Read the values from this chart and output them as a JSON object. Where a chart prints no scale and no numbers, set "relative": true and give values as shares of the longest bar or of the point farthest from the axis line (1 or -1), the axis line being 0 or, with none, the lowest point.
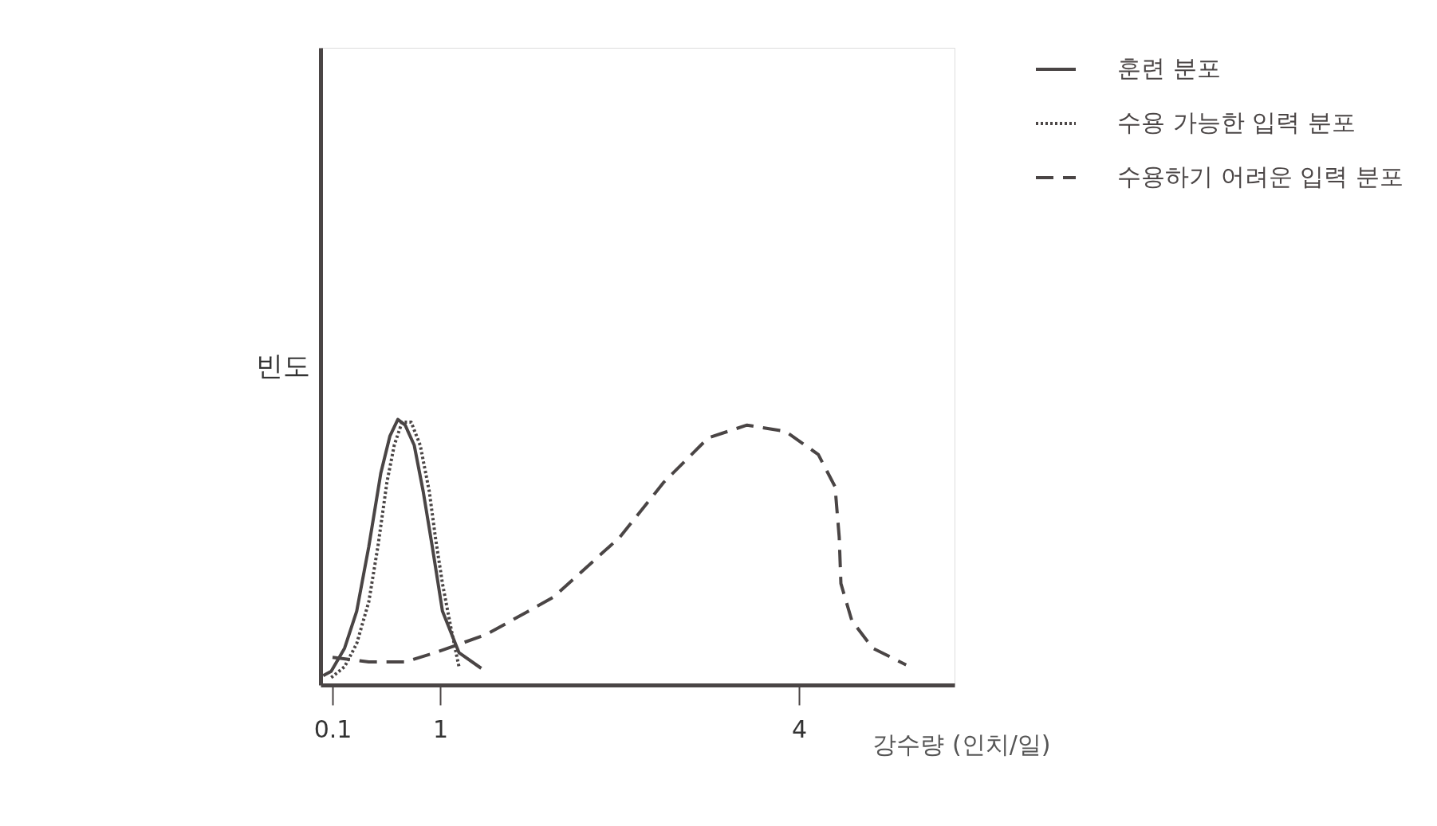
{
  "chart_data": {
    "type": "line",
    "relative": true,
    "xlabel": "강수량 (인치/일)",
    "ylabel": "빈도",
    "xlim": [
      0,
      5.3
    ],
    "xticks": [
      0.1,
      1,
      4
    ],
    "grid": false,
    "legend": "top right",
    "tick_labels": "x",
    "marker": "none",
    "series": [
      {
        "name": "훈련 분포",
        "color": "#4a4545",
        "line_style": "solid",
        "x": [
          0.022,
          0.089,
          0.201,
          0.302,
          0.403,
          0.504,
          0.58,
          0.646,
          0.707,
          0.783,
          0.858,
          0.934,
          1.019,
          1.157,
          1.343
        ],
        "values": [
          0.035,
          0.052,
          0.139,
          0.278,
          0.521,
          0.799,
          0.938,
          1,
          0.979,
          0.903,
          0.729,
          0.521,
          0.278,
          0.122,
          0.063
        ]
      },
      {
        "name": "수용 가능한 입력 분포",
        "color": "#4a4545",
        "line_style": "dotted",
        "x": [
          0.089,
          0.201,
          0.302,
          0.403,
          0.479,
          0.555,
          0.616,
          0.681,
          0.757,
          0.833,
          0.909,
          0.96,
          1.019,
          1.093,
          1.157
        ],
        "values": [
          0.028,
          0.069,
          0.156,
          0.313,
          0.521,
          0.764,
          0.903,
          0.99,
          0.99,
          0.903,
          0.729,
          0.556,
          0.382,
          0.208,
          0.069
        ]
      },
      {
        "name": "수용하기 어려운 입력 분포",
        "color": "#4a4545",
        "line_style": "dashed",
        "x": [
          0.1,
          0.403,
          0.707,
          0.96,
          1.389,
          1.944,
          2.5,
          2.87,
          3.241,
          3.565,
          3.889,
          4.161,
          4.301,
          4.336,
          4.35,
          4.441,
          4.615,
          4.895
        ],
        "values": [
          0.104,
          0.087,
          0.087,
          0.122,
          0.191,
          0.33,
          0.556,
          0.764,
          0.931,
          0.979,
          0.955,
          0.868,
          0.747,
          0.556,
          0.382,
          0.243,
          0.139,
          0.076
        ]
      }
    ]
  }
}
